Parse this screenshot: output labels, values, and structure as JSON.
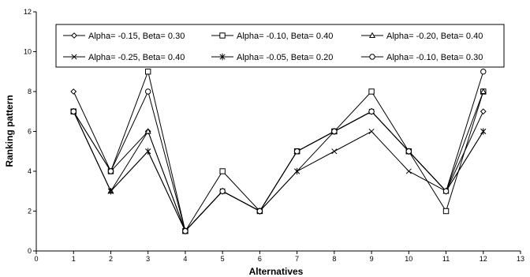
{
  "chart_data": {
    "type": "line",
    "title": "",
    "xlabel": "Alternatives",
    "ylabel": "Ranking pattern",
    "xlim": [
      0,
      13
    ],
    "ylim": [
      0,
      12
    ],
    "x_ticks": [
      0,
      1,
      2,
      3,
      4,
      5,
      6,
      7,
      8,
      9,
      10,
      11,
      12,
      13
    ],
    "y_ticks": [
      0,
      2,
      4,
      6,
      8,
      10,
      12
    ],
    "grid": false,
    "legend_position": "top",
    "x": [
      1,
      2,
      3,
      4,
      5,
      6,
      7,
      8,
      9,
      10,
      11,
      12
    ],
    "series": [
      {
        "name": "Alpha= -0.15, Beta= 0.30",
        "marker": "diamond",
        "values": [
          8,
          4,
          6,
          1,
          3,
          2,
          5,
          6,
          7,
          5,
          3,
          7
        ]
      },
      {
        "name": "Alpha= -0.10, Beta= 0.40",
        "marker": "square",
        "values": [
          7,
          4,
          9,
          1,
          4,
          2,
          5,
          6,
          8,
          5,
          2,
          8
        ]
      },
      {
        "name": "Alpha= -0.20, Beta= 0.40",
        "marker": "triangle",
        "values": [
          7,
          3,
          6,
          1,
          3,
          2,
          5,
          6,
          7,
          5,
          3,
          8
        ]
      },
      {
        "name": "Alpha= -0.25, Beta= 0.40",
        "marker": "x",
        "values": [
          7,
          3,
          5,
          1,
          3,
          2,
          4,
          5,
          6,
          4,
          3,
          6
        ]
      },
      {
        "name": "Alpha= -0.05, Beta= 0.20",
        "marker": "star",
        "values": [
          7,
          3,
          5,
          1,
          3,
          2,
          4,
          6,
          7,
          5,
          3,
          6
        ]
      },
      {
        "name": "Alpha= -0.10, Beta= 0.30",
        "marker": "circle",
        "values": [
          7,
          4,
          8,
          1,
          3,
          2,
          5,
          6,
          7,
          5,
          3,
          9
        ]
      }
    ]
  }
}
